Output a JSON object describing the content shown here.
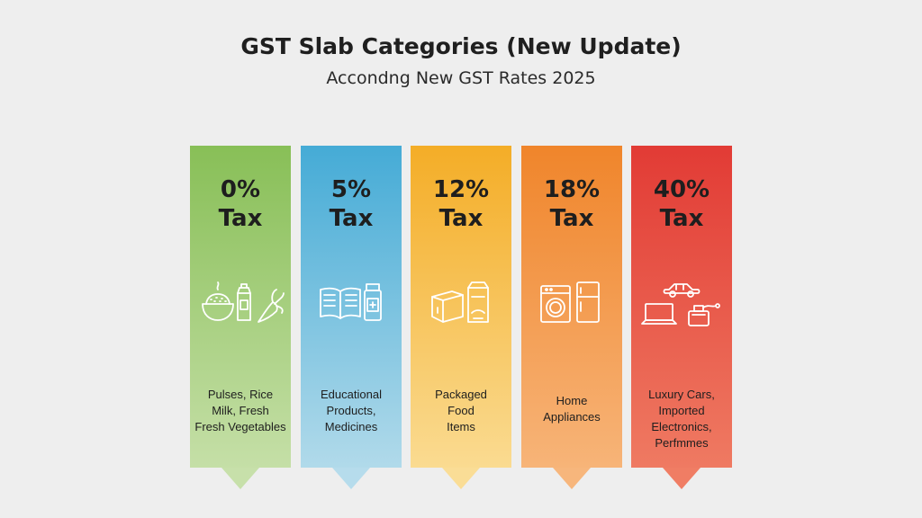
{
  "header": {
    "title": "GST Slab Categories (New Update)",
    "subtitle": "Accondng New GST Rates 2025"
  },
  "slabs": [
    {
      "rate": "0%",
      "tax": "Tax",
      "desc": [
        "Pulses, Rice",
        "Milk, Fresh",
        "Fresh Vegetables"
      ],
      "icons": [
        "rice-bowl-icon",
        "milk-carton-icon",
        "radish-icon"
      ],
      "color": "#88bf57"
    },
    {
      "rate": "5%",
      "tax": "Tax",
      "desc": [
        "Educational",
        "Products,",
        "Medicines"
      ],
      "icons": [
        "open-book-icon",
        "medicine-bottle-icon"
      ],
      "color": "#45abd6"
    },
    {
      "rate": "12%",
      "tax": "Tax",
      "desc": [
        "Packaged",
        "Food",
        "Items"
      ],
      "icons": [
        "package-box-icon",
        "food-bag-icon"
      ],
      "color": "#f4ad27"
    },
    {
      "rate": "18%",
      "tax": "Tax",
      "desc": [
        "Home",
        "Appliances"
      ],
      "icons": [
        "washing-machine-icon",
        "refrigerator-icon"
      ],
      "color": "#f0852b"
    },
    {
      "rate": "40%",
      "tax": "Tax",
      "desc": [
        "Luxury Cars,",
        "Imported",
        "Electronics,",
        "Perfmmes"
      ],
      "icons": [
        "car-icon",
        "laptop-icon",
        "perfume-icon"
      ],
      "color": "#e23b35"
    }
  ]
}
